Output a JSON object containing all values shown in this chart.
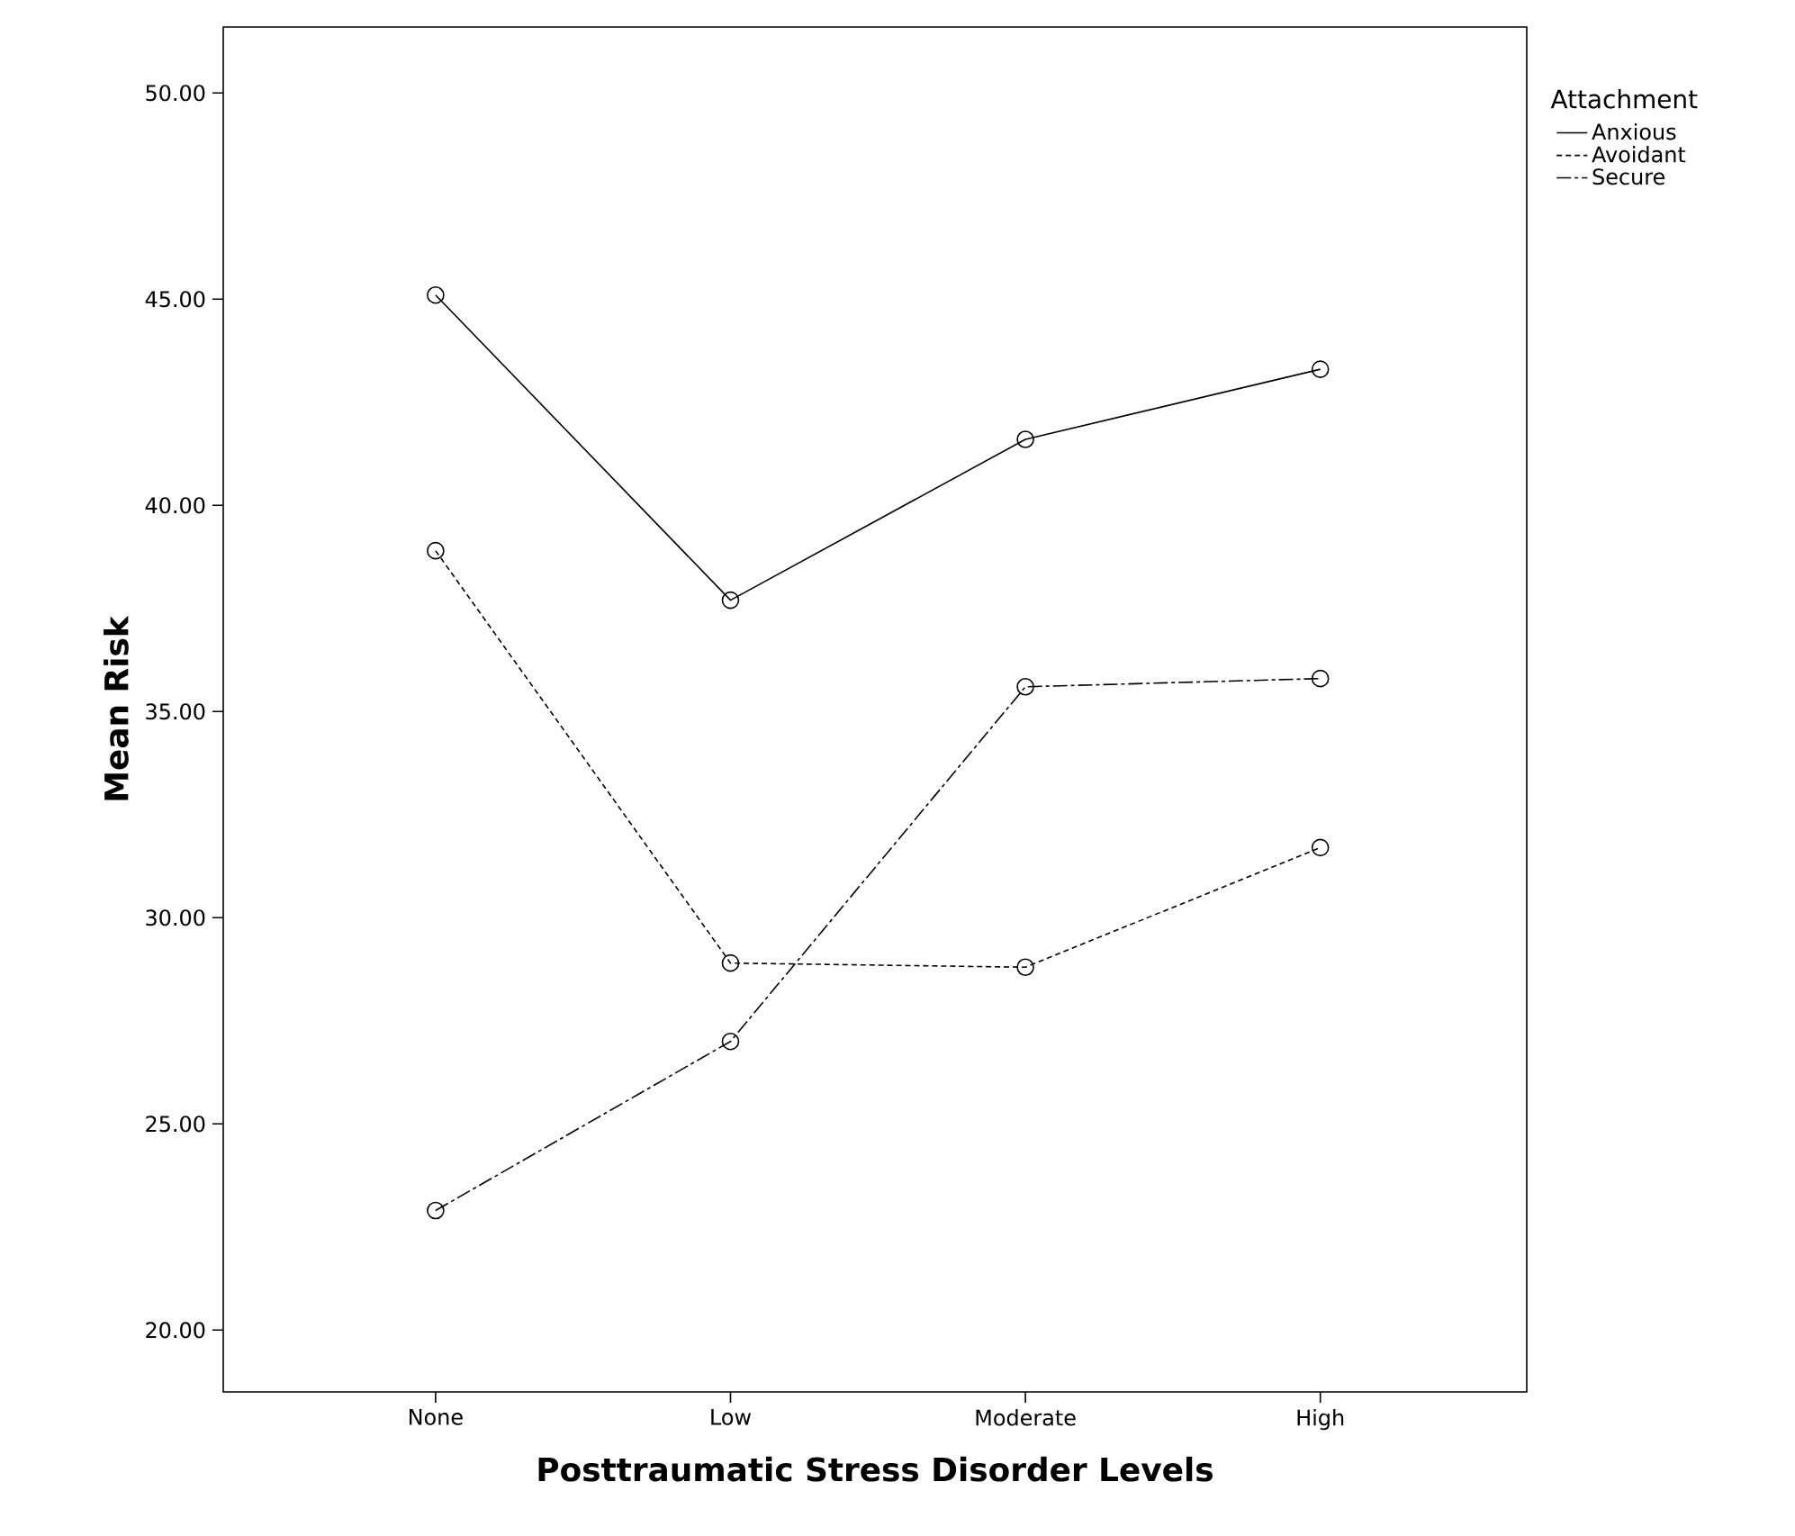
{
  "chart_data": {
    "type": "line",
    "xlabel": "Posttraumatic Stress Disorder Levels",
    "ylabel": "Mean Risk",
    "legend_title": "Attachment",
    "categories": [
      "None",
      "Low",
      "Moderate",
      "High"
    ],
    "series": [
      {
        "name": "Anxious",
        "color": "#000000",
        "line_style": "solid",
        "values": [
          45.1,
          37.7,
          41.6,
          43.3
        ]
      },
      {
        "name": "Avoidant",
        "color": "#000000",
        "line_style": "dotted",
        "values": [
          38.9,
          28.9,
          28.8,
          31.7
        ]
      },
      {
        "name": "Secure",
        "color": "#000000",
        "line_style": "dashed",
        "values": [
          22.9,
          27.0,
          35.6,
          35.8
        ]
      }
    ],
    "ylim": [
      18.5,
      51.6
    ],
    "yticks": [
      {
        "value": 20,
        "label": "20.00"
      },
      {
        "value": 25,
        "label": "25.00"
      },
      {
        "value": 30,
        "label": "30.00"
      },
      {
        "value": 35,
        "label": "35.00"
      },
      {
        "value": 40,
        "label": "40.00"
      },
      {
        "value": 45,
        "label": "45.00"
      },
      {
        "value": 50,
        "label": "50.00"
      }
    ],
    "marker": "circle",
    "grid": false,
    "legend": "top right"
  }
}
